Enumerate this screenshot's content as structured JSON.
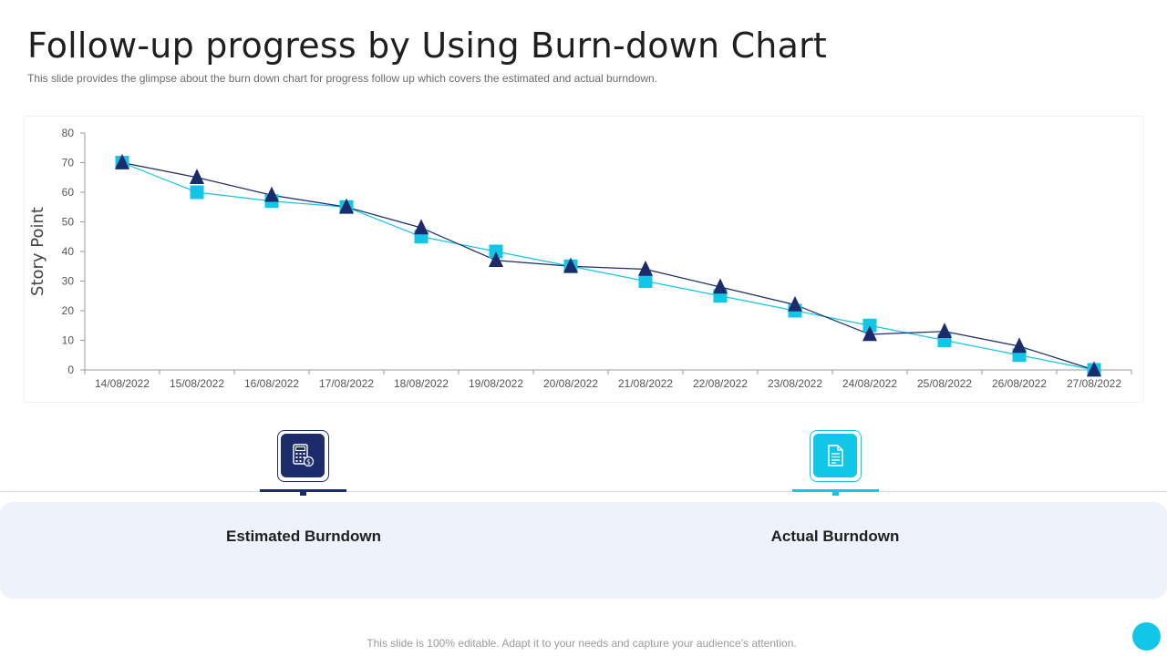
{
  "page": {
    "title": "Follow-up progress by Using Burn-down Chart",
    "subtitle": "This slide provides the glimpse about the burn down chart for progress follow up which covers the estimated and actual burndown.",
    "footer": "This slide is 100% editable. Adapt it to your needs and capture your audience’s attention."
  },
  "legend": {
    "estimated_label": "Estimated Burndown",
    "actual_label": "Actual Burndown",
    "estimated_icon": "calculator-dollar-icon",
    "actual_icon": "document-icon"
  },
  "colors": {
    "estimated": "#1c2b6b",
    "actual": "#12c6e8",
    "axis": "#9a9a9a"
  },
  "chart_data": {
    "type": "line",
    "categories": [
      "14/08/2022",
      "15/08/2022",
      "16/08/2022",
      "17/08/2022",
      "18/08/2022",
      "19/08/2022",
      "20/08/2022",
      "21/08/2022",
      "22/08/2022",
      "23/08/2022",
      "24/08/2022",
      "25/08/2022",
      "26/08/2022",
      "27/08/2022"
    ],
    "series": [
      {
        "name": "Estimated Burndown",
        "marker": "triangle",
        "color": "#1c2b6b",
        "values": [
          70,
          65,
          59,
          55,
          48,
          37,
          35,
          34,
          28,
          22,
          12,
          13,
          8,
          0
        ]
      },
      {
        "name": "Actual Burndown",
        "marker": "square",
        "color": "#12c6e8",
        "values": [
          70,
          60,
          57,
          55,
          45,
          40,
          35,
          30,
          25,
          20,
          15,
          10,
          5,
          0
        ]
      }
    ],
    "title": "",
    "xlabel": "",
    "ylabel": "Story Point",
    "ylim": [
      0,
      80
    ],
    "yticks": [
      0,
      10,
      20,
      30,
      40,
      50,
      60,
      70,
      80
    ],
    "grid": false,
    "legend": "none"
  }
}
